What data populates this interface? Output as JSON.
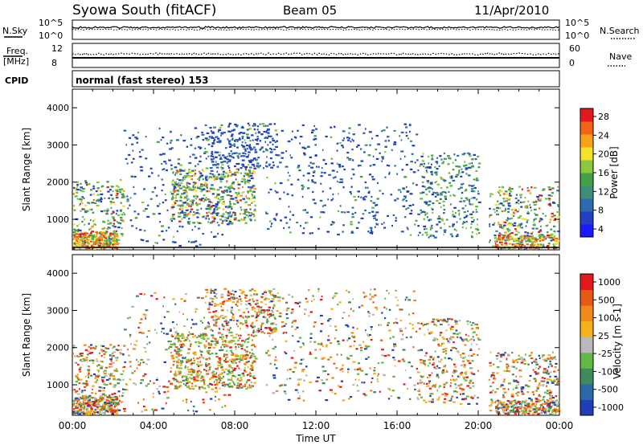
{
  "header": {
    "title": "Syowa South (fitACF)",
    "beam": "Beam 05",
    "date": "11/Apr/2010"
  },
  "strips": {
    "nsky_label": "N.Sky",
    "nsky_ticks": [
      "10^5",
      "10^0"
    ],
    "nsearch_label": "N.Search",
    "nsearch_ticks": [
      "10^5",
      "10^0"
    ],
    "freq_label": "Freq.",
    "freq_unit": "[MHz]",
    "freq_ticks": [
      "12",
      "8"
    ],
    "nave_label": "Nave",
    "nave_ticks": [
      "60",
      "0"
    ],
    "cpid_label": "CPID",
    "cpid_text": "normal (fast stereo) 153"
  },
  "chart_data": [
    {
      "type": "heatmap",
      "name": "power",
      "ylabel": "Slant Range [km]",
      "xlabel": "Time UT",
      "xlim": [
        0,
        24
      ],
      "ylim": [
        180,
        4500
      ],
      "x_ticks": [
        "00:00",
        "04:00",
        "08:00",
        "12:00",
        "16:00",
        "20:00",
        "00:00"
      ],
      "y_ticks": [
        1000,
        2000,
        3000,
        4000
      ],
      "colorbar_label": "Power [dB]",
      "colorbar_ticks": [
        "28",
        "24",
        "20",
        "16",
        "12",
        "8",
        "4"
      ],
      "colorbar_colors": [
        "#1a1aff",
        "#2340c0",
        "#2d6ab0",
        "#3f8f78",
        "#43a046",
        "#8dc63f",
        "#f5e12a",
        "#f7a21a",
        "#f06418",
        "#e31a1c"
      ]
    },
    {
      "type": "heatmap",
      "name": "velocity",
      "ylabel": "Slant Range [km]",
      "xlabel": "Time UT",
      "xlim": [
        0,
        24
      ],
      "ylim": [
        180,
        4500
      ],
      "x_ticks": [
        "00:00",
        "04:00",
        "08:00",
        "12:00",
        "16:00",
        "20:00",
        "00:00"
      ],
      "y_ticks": [
        1000,
        2000,
        3000,
        4000
      ],
      "colorbar_label": "Velocity [m s-1]",
      "colorbar_ticks": [
        "1000",
        "500",
        "100",
        "25",
        "-25",
        "-100",
        "-500",
        "-1000"
      ],
      "colorbar_colors": [
        "#1f3fb8",
        "#2b6aa8",
        "#3e8c5c",
        "#63b946",
        "#b9b9b9",
        "#f6b21d",
        "#f08a18",
        "#e65a16",
        "#e31a1c"
      ]
    }
  ],
  "axis": {
    "x_title": "Time UT"
  }
}
